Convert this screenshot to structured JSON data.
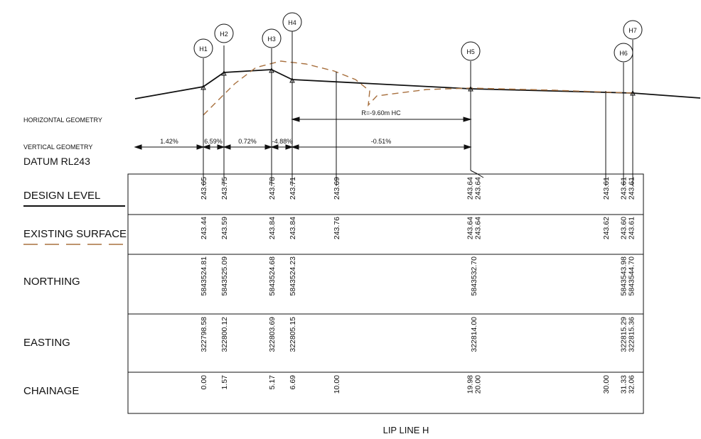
{
  "colors": {
    "ink": "#111111",
    "existing": "#a8703e"
  },
  "labels": {
    "horizontal_geometry": "HORIZONTAL GEOMETRY",
    "vertical_geometry": "VERTICAL GEOMETRY",
    "datum": "DATUM RL243",
    "design_level": "DESIGN LEVEL",
    "existing_surface": "EXISTING SURFACE",
    "northing": "NORTHING",
    "easting": "EASTING",
    "chainage": "CHAINAGE",
    "footer": "LIP LINE H"
  },
  "horizontal_geometry": {
    "curve": "R=-9.60m HC"
  },
  "vertical_geometry": {
    "grades": [
      "1.42%",
      "6.59%",
      "0.72%",
      "-4.88%",
      "-0.51%"
    ]
  },
  "points": [
    "H1",
    "H2",
    "H3",
    "H4",
    "H5",
    "H6",
    "H7"
  ],
  "stations": [
    {
      "chainage": "0.00",
      "design": "243.65",
      "existing": "243.44",
      "northing": "5843524.81",
      "easting": "322798.58"
    },
    {
      "chainage": "1.57",
      "design": "243.75",
      "existing": "243.59",
      "northing": "5843525.09",
      "easting": "322800.12"
    },
    {
      "chainage": "5.17",
      "design": "243.78",
      "existing": "243.84",
      "northing": "5843524.68",
      "easting": "322803.69"
    },
    {
      "chainage": "6.69",
      "design": "243.71",
      "existing": "243.84",
      "northing": "5843524.23",
      "easting": "322805.15"
    },
    {
      "chainage": "10.00",
      "design": "243.69",
      "existing": "243.76",
      "northing": "",
      "easting": ""
    },
    {
      "chainage": "19.98\n20.00",
      "design": "243.64\n243.64",
      "existing": "243.64\n243.64",
      "northing": "5843532.70",
      "easting": "322814.00"
    },
    {
      "chainage": "30.00",
      "design": "243.61",
      "existing": "243.62",
      "northing": "",
      "easting": ""
    },
    {
      "chainage": "31.33\n32.06",
      "design": "243.61\n243.61",
      "existing": "243.60\n243.61",
      "northing": "5843543.98\n5843544.70",
      "easting": "322815.29\n322815.36"
    }
  ]
}
